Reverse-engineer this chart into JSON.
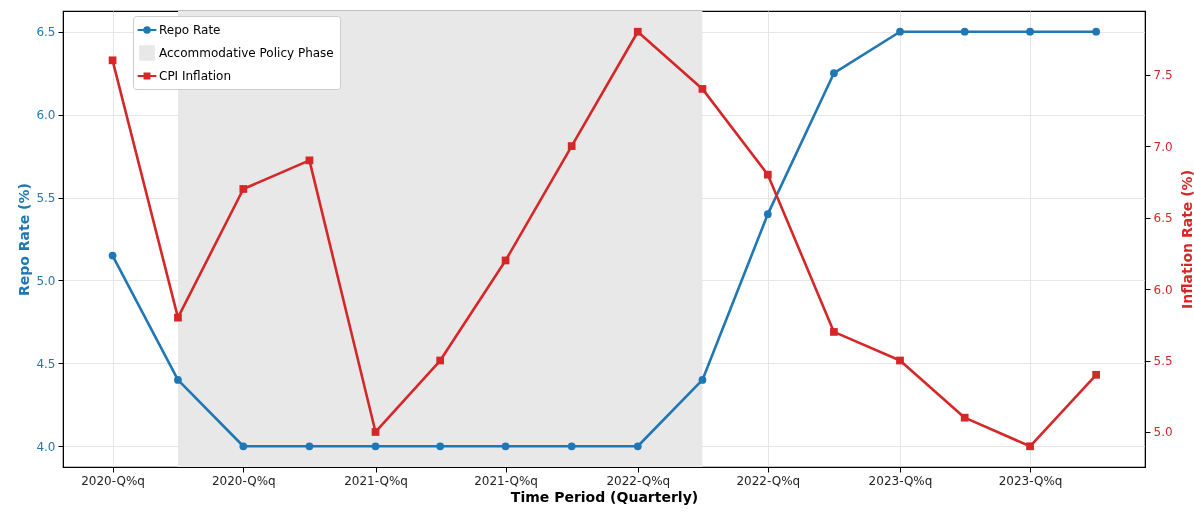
{
  "chart_data": {
    "type": "line",
    "xlabel": "Time Period (Quarterly)",
    "ylabel": "Repo Rate (%)",
    "y2label": "Inflation Rate (%)",
    "x": [
      "2020-01",
      "2020-04",
      "2020-07",
      "2020-10",
      "2021-01",
      "2021-04",
      "2021-07",
      "2021-10",
      "2022-01",
      "2022-04",
      "2022-07",
      "2022-10",
      "2023-01",
      "2023-04",
      "2023-07",
      "2023-10"
    ],
    "series": [
      {
        "name": "Repo Rate",
        "color": "#1f77b4",
        "marker": "circle",
        "values": [
          5.15,
          4.4,
          4.0,
          4.0,
          4.0,
          4.0,
          4.0,
          4.0,
          4.0,
          4.4,
          5.4,
          6.25,
          6.5,
          6.5,
          6.5,
          6.5
        ]
      },
      {
        "name": "CPI Inflation",
        "color": "#d62728",
        "marker": "square",
        "axis": "y2",
        "values": [
          7.6,
          5.8,
          6.7,
          6.9,
          5.0,
          5.5,
          6.2,
          7.0,
          7.8,
          7.4,
          6.8,
          5.7,
          5.5,
          5.1,
          4.9,
          5.4
        ]
      }
    ],
    "bands": [
      {
        "axis": "x",
        "from": "2020-04",
        "to": "2022-04",
        "label": "Accommodative Policy Phase",
        "color": "#e8e8e8"
      }
    ],
    "xlim": [
      "2019-10-24",
      "2023-12-08"
    ],
    "xticks": [
      {
        "value": "2020-01",
        "label": "2020-Q%q"
      },
      {
        "value": "2020-07",
        "label": "2020-Q%q"
      },
      {
        "value": "2021-01",
        "label": "2021-Q%q"
      },
      {
        "value": "2021-07",
        "label": "2021-Q%q"
      },
      {
        "value": "2022-01",
        "label": "2022-Q%q"
      },
      {
        "value": "2022-07",
        "label": "2022-Q%q"
      },
      {
        "value": "2023-01",
        "label": "2023-Q%q"
      },
      {
        "value": "2023-07",
        "label": "2023-Q%q"
      }
    ],
    "ylim": [
      3.875,
      6.625
    ],
    "yticks": [
      {
        "value": 4,
        "label": "4.0"
      },
      {
        "value": 4.5,
        "label": "4.5"
      },
      {
        "value": 5,
        "label": "5.0"
      },
      {
        "value": 5.5,
        "label": "5.5"
      },
      {
        "value": 6,
        "label": "6.0"
      },
      {
        "value": 6.5,
        "label": "6.5"
      }
    ],
    "y2lim": [
      4.755,
      7.945
    ],
    "y2ticks": [
      {
        "value": 5,
        "label": "5.0"
      },
      {
        "value": 5.5,
        "label": "5.5"
      },
      {
        "value": 6,
        "label": "6.0"
      },
      {
        "value": 6.5,
        "label": "6.5"
      },
      {
        "value": 7,
        "label": "7.0"
      },
      {
        "value": 7.5,
        "label": "7.5"
      }
    ],
    "grid": true,
    "legend": "top left",
    "line_style": "solid"
  }
}
